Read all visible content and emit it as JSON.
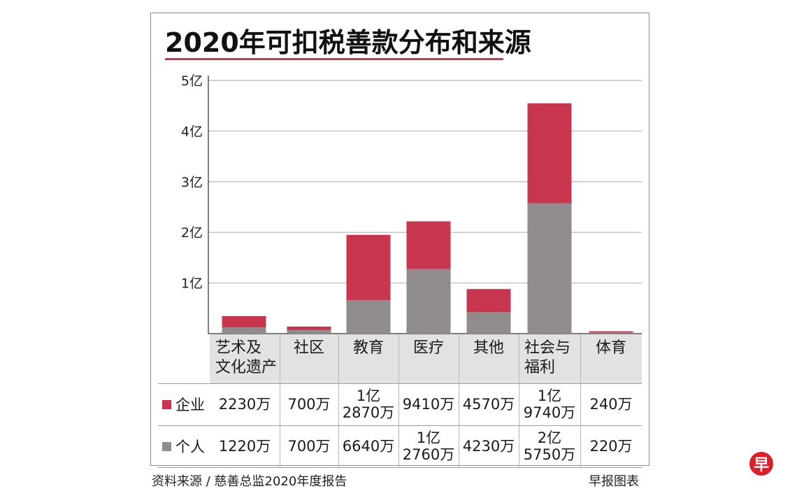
{
  "colors": {
    "enterprise": "#c8354f",
    "individual": "#8f8c8b",
    "grid": "#c4c4c4",
    "header_bg": "#e2e2e2"
  },
  "chart_data": {
    "type": "bar",
    "stacked": true,
    "title": "2020年可扣税善款分布和来源",
    "unit": "亿",
    "categories": [
      "艺术及\n文化遗产",
      "社区",
      "教育",
      "医疗",
      "其他",
      "社会与\n福利",
      "体育"
    ],
    "series": [
      {
        "name": "企业",
        "values": [
          0.223,
          0.07,
          1.287,
          0.941,
          0.457,
          1.974,
          0.024
        ],
        "labels": [
          "2230万",
          "700万",
          "1亿\n2870万",
          "9410万",
          "4570万",
          "1亿\n9740万",
          "240万"
        ]
      },
      {
        "name": "个人",
        "values": [
          0.122,
          0.07,
          0.664,
          1.276,
          0.423,
          2.575,
          0.022
        ],
        "labels": [
          "1220万",
          "700万",
          "6640万",
          "1亿\n2760万",
          "4230万",
          "2亿\n5750万",
          "220万"
        ]
      }
    ],
    "ylim": [
      0,
      5
    ],
    "yticks": [
      1,
      2,
      3,
      4,
      5
    ],
    "ytick_labels": [
      "1亿",
      "2亿",
      "3亿",
      "4亿",
      "5亿"
    ],
    "grid": true
  },
  "footer": {
    "source": "资料来源 / 慈善总监2020年度报告",
    "credit": "早报图表",
    "logo_char": "早"
  }
}
